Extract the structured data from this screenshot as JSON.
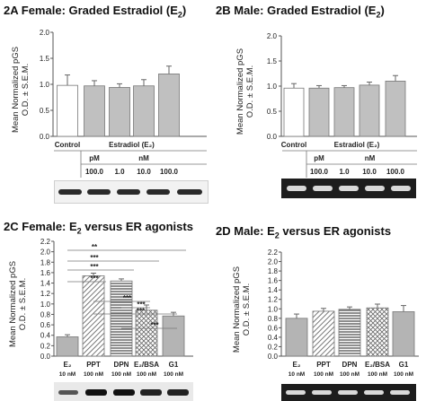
{
  "panels": [
    {
      "label": "2A",
      "title_main": "Female:  Graded Estradiol (E",
      "title_sub": "2",
      "title_end": ")",
      "ylabel_line1": "Mean Normalized pGS",
      "ylabel_line2": "O.D. ± S.E.M.",
      "rows": [
        [
          "Control",
          "Estradiol (E₂)"
        ],
        [
          "",
          "pM",
          "nM"
        ],
        [
          "",
          "100.0",
          "1.0",
          "10.0",
          "100.0"
        ]
      ]
    },
    {
      "label": "2B",
      "title_main": "Male:  Graded Estradiol (E",
      "title_sub": "2",
      "title_end": ")",
      "ylabel_line1": "Mean Normalized pGS",
      "ylabel_line2": "O.D. ± S.E.M.",
      "rows": [
        [
          "Control",
          "Estradiol (E₂)"
        ],
        [
          "",
          "pM",
          "nM"
        ],
        [
          "",
          "100.0",
          "1.0",
          "10.0",
          "100.0"
        ]
      ]
    },
    {
      "label": "2C",
      "title_main": "Female:  E",
      "title_sub": "2",
      "title_end": " versus ER agonists",
      "ylabel_line1": "Mean Normalized pGS",
      "ylabel_line2": "O.D. ± S.E.M."
    },
    {
      "label": "2D",
      "title_main": "Male:  E",
      "title_sub": "2",
      "title_end": " versus ER agonists",
      "ylabel_line1": "Mean Normalized pGS",
      "ylabel_line2": "O.D. ± S.E.M."
    }
  ],
  "chart_data": [
    {
      "id": "2A",
      "type": "bar",
      "categories": [
        "Control",
        "100.0 pM",
        "1.0 nM",
        "10.0 nM",
        "100.0 nM"
      ],
      "values": [
        0.98,
        0.97,
        0.94,
        0.97,
        1.2
      ],
      "errors": [
        0.2,
        0.1,
        0.07,
        0.12,
        0.15
      ],
      "fills": [
        "white",
        "gray",
        "gray",
        "gray",
        "gray"
      ],
      "ylim": [
        0,
        2.0
      ],
      "yticks": [
        "0.0",
        "0.5",
        "1.0",
        "1.5",
        "2.0"
      ],
      "bottom_labels": [
        "Control",
        "Estradiol (E₂)",
        "pM",
        "nM",
        "100.0",
        "1.0",
        "10.0",
        "100.0"
      ]
    },
    {
      "id": "2B",
      "type": "bar",
      "categories": [
        "Control",
        "100.0 pM",
        "1.0 nM",
        "10.0 nM",
        "100.0 nM"
      ],
      "values": [
        0.96,
        0.96,
        0.97,
        1.02,
        1.1
      ],
      "errors": [
        0.09,
        0.05,
        0.04,
        0.06,
        0.11
      ],
      "fills": [
        "white",
        "gray",
        "gray",
        "gray",
        "gray"
      ],
      "ylim": [
        0,
        2.0
      ],
      "yticks": [
        "0.0",
        "0.5",
        "1.0",
        "1.5",
        "2.0"
      ],
      "bottom_labels": [
        "Control",
        "Estradiol (E₂)",
        "pM",
        "nM",
        "100.0",
        "1.0",
        "10.0",
        "100.0"
      ]
    },
    {
      "id": "2C",
      "type": "bar",
      "categories": [
        "E₂",
        "PPT",
        "DPN",
        "E₂/BSA",
        "G1"
      ],
      "concentrations": [
        "10 nM",
        "100 nM",
        "100 nM",
        "100 nM",
        "100 nM"
      ],
      "values": [
        0.37,
        1.54,
        1.44,
        0.88,
        0.77
      ],
      "errors": [
        0.04,
        0.05,
        0.04,
        0.1,
        0.07
      ],
      "patterns": [
        "solid",
        "diag",
        "hlines",
        "cross",
        "solid"
      ],
      "ylim": [
        0,
        2.2
      ],
      "yticks": [
        "0.0",
        "0.2",
        "0.4",
        "0.6",
        "0.8",
        "1.0",
        "1.2",
        "1.4",
        "1.6",
        "1.8",
        "2.0",
        "2.2"
      ],
      "significance": [
        {
          "from": 0,
          "to": 1,
          "label": "***"
        },
        {
          "from": 0,
          "to": 2,
          "label": "***"
        },
        {
          "from": 0,
          "to": 3,
          "label": "***"
        },
        {
          "from": 0,
          "to": 4,
          "label": "**"
        },
        {
          "from": 1,
          "to": 3,
          "label": "***"
        },
        {
          "from": 1,
          "to": 4,
          "label": "***"
        },
        {
          "from": 2,
          "to": 3,
          "label": "***"
        },
        {
          "from": 2,
          "to": 4,
          "label": "***"
        }
      ]
    },
    {
      "id": "2D",
      "type": "bar",
      "categories": [
        "E₂",
        "PPT",
        "DPN",
        "E₂/BSA",
        "G1"
      ],
      "concentrations": [
        "10 nM",
        "100 nM",
        "100 nM",
        "100 nM",
        "100 nM"
      ],
      "values": [
        0.8,
        0.95,
        0.99,
        1.02,
        0.94
      ],
      "errors": [
        0.09,
        0.06,
        0.05,
        0.08,
        0.13
      ],
      "patterns": [
        "solid",
        "diag",
        "hlines",
        "cross",
        "solid"
      ],
      "ylim": [
        0,
        2.2
      ],
      "yticks": [
        "0.0",
        "0.2",
        "0.4",
        "0.6",
        "0.8",
        "1.0",
        "1.2",
        "1.4",
        "1.6",
        "1.8",
        "2.0",
        "2.2"
      ]
    }
  ]
}
